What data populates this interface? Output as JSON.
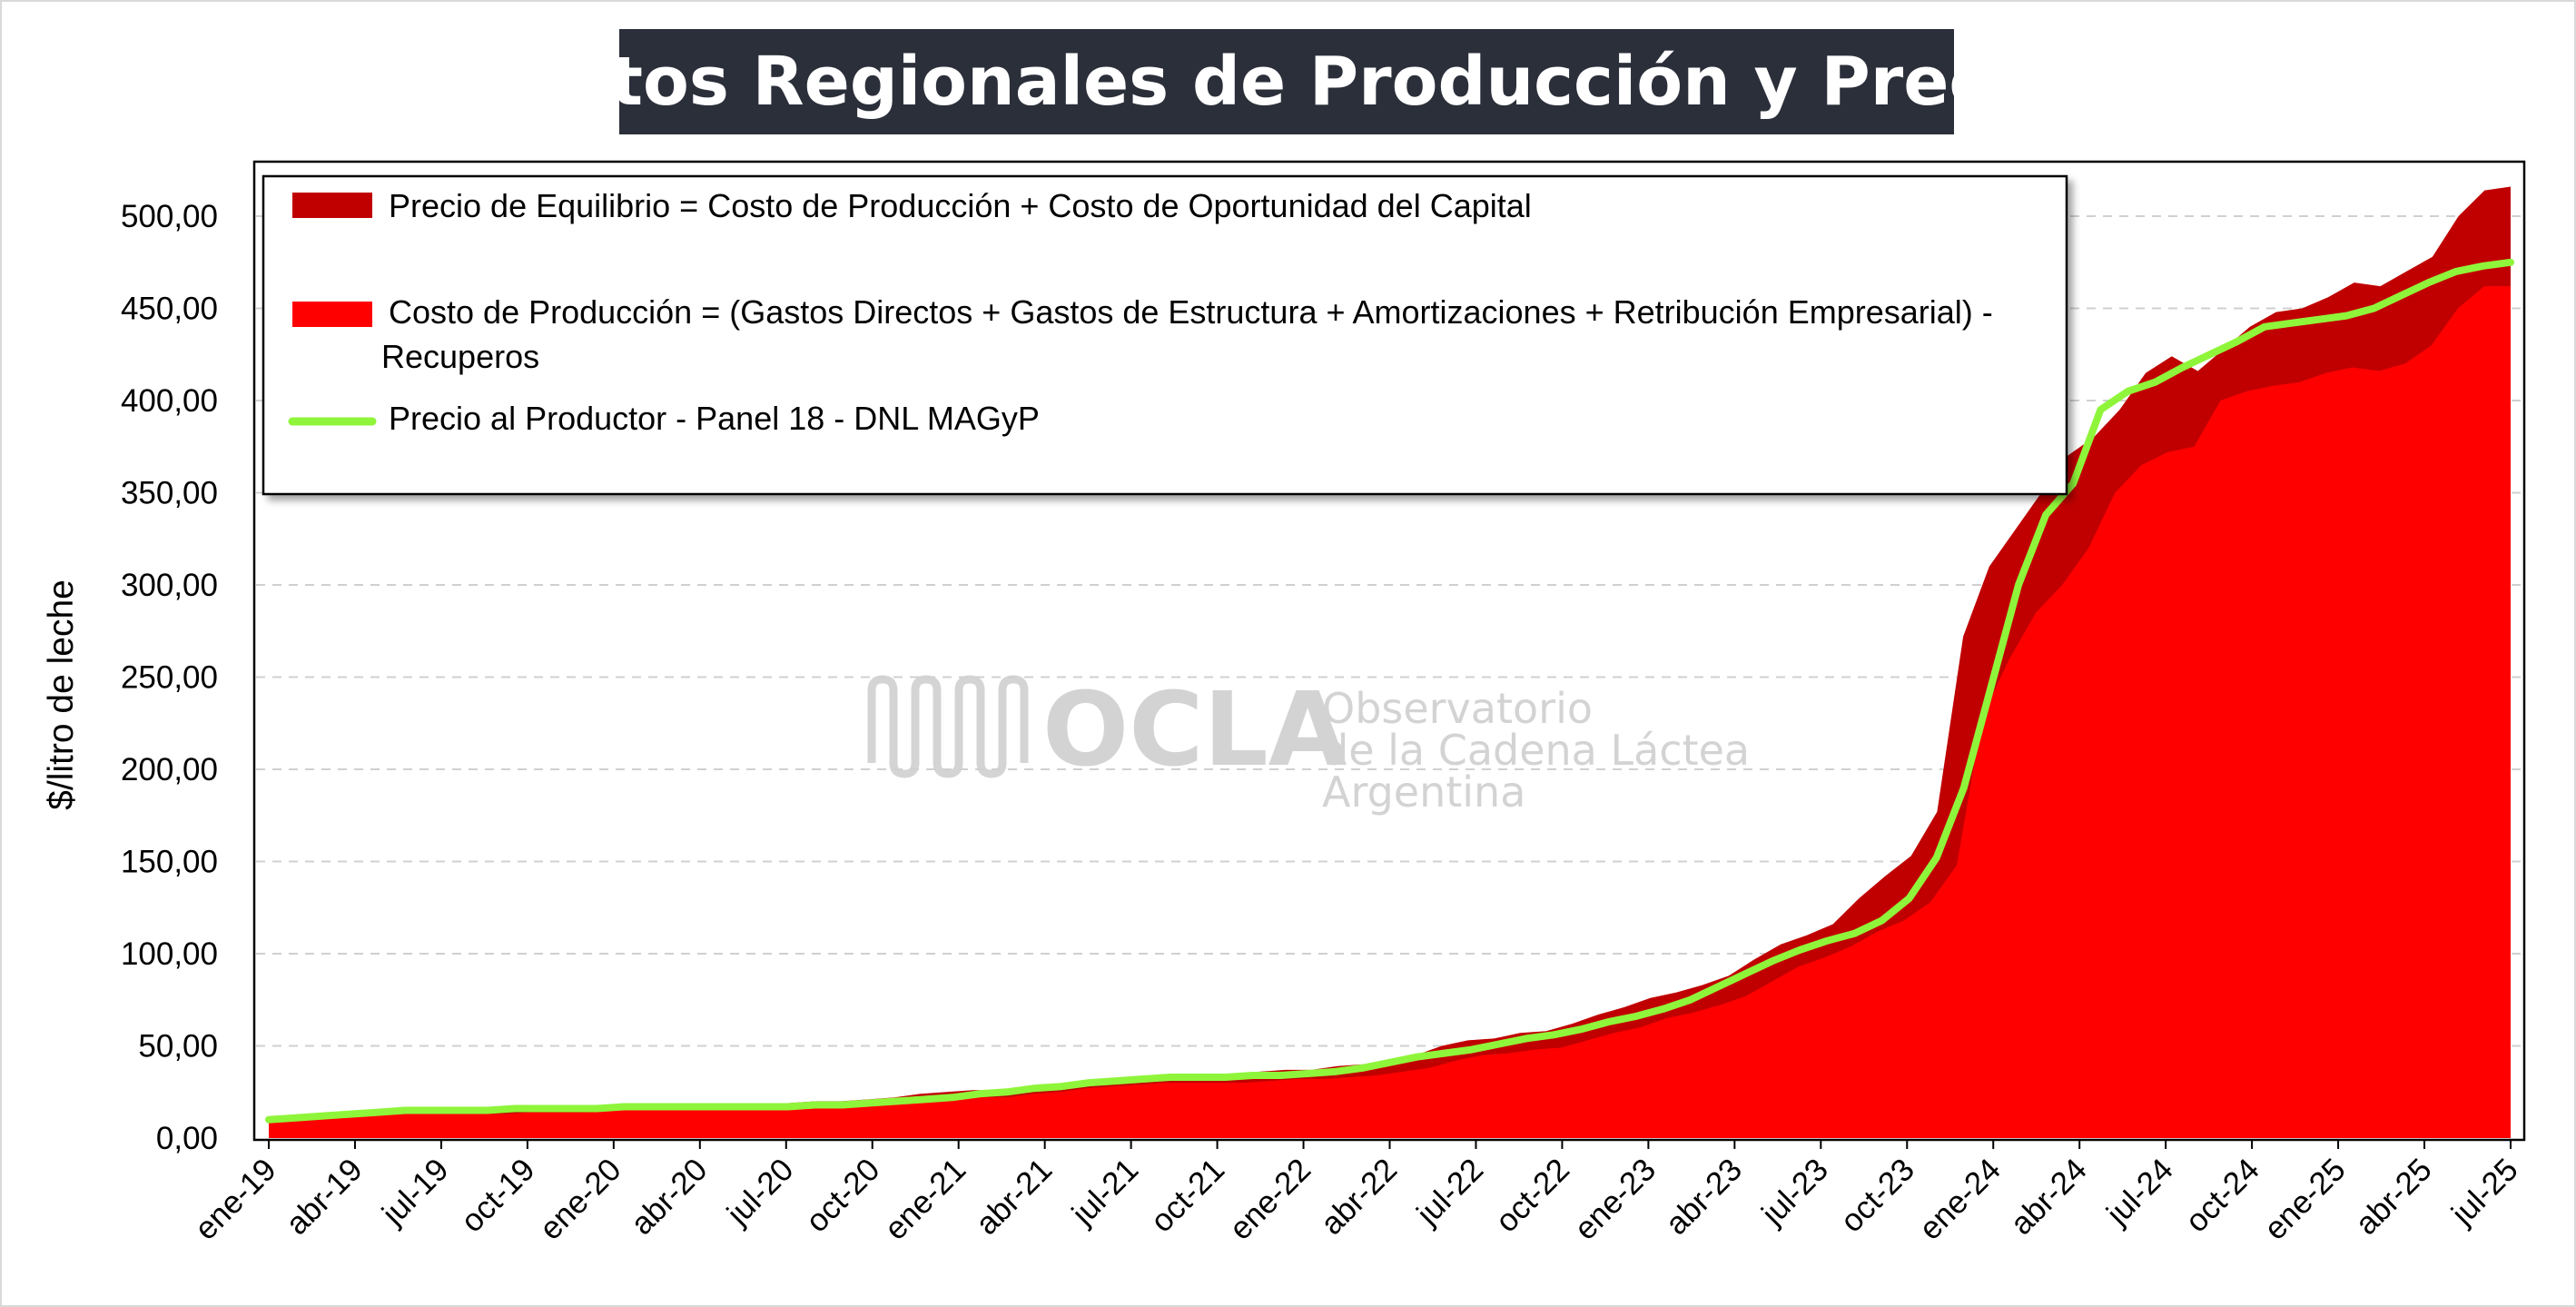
{
  "colors": {
    "equilibrium": "#c00000",
    "cost": "#ff0000",
    "price": "#8ff53a",
    "title_bg": "#2b2f3a"
  },
  "watermark": {
    "brand": "OCLA",
    "line1": "Observatorio",
    "line2": "de la Cadena Láctea",
    "line3": "Argentina"
  },
  "chart_data": {
    "type": "area",
    "title": "Costos Regionales de Producción y Precios",
    "ylabel": "$/litro de leche",
    "xlabel": "",
    "ylim": [
      0,
      500
    ],
    "y_ticks": [
      "0,00",
      "50,00",
      "100,00",
      "150,00",
      "200,00",
      "250,00",
      "300,00",
      "350,00",
      "400,00",
      "450,00",
      "500,00"
    ],
    "x_tick_labels": [
      "ene-19",
      "abr-19",
      "jul-19",
      "oct-19",
      "ene-20",
      "abr-20",
      "jul-20",
      "oct-20",
      "ene-21",
      "abr-21",
      "jul-21",
      "oct-21",
      "ene-22",
      "abr-22",
      "jul-22",
      "oct-22",
      "ene-23",
      "abr-23",
      "jul-23",
      "oct-23",
      "ene-24",
      "abr-24",
      "jul-24",
      "oct-24",
      "ene-25",
      "abr-25",
      "jul-25"
    ],
    "grid": true,
    "legend_position": "top-left",
    "legend": [
      {
        "label": "Precio de Equilibrio = Costo de Producción + Costo de Oportunidad del Capital"
      },
      {
        "label": "Costo de Producción = (Gastos Directos + Gastos de Estructura + Amortizaciones + Retribución Empresarial) -",
        "label2": "Recuperos"
      },
      {
        "label": "Precio al Productor - Panel 18 - DNL MAGyP"
      }
    ],
    "series": [
      {
        "name": "Precio de Equilibrio = Costo de Producción + Costo de Oportunidad del Capital",
        "kind": "area",
        "values": [
          10,
          11,
          12,
          13,
          14,
          15,
          15,
          15,
          15,
          16,
          16,
          16,
          16,
          17,
          17,
          18,
          18,
          18,
          18,
          18,
          19,
          20,
          20,
          21,
          22,
          24,
          25,
          26,
          26,
          28,
          29,
          31,
          32,
          33,
          34,
          34,
          35,
          35,
          36,
          37,
          37,
          39,
          40,
          42,
          45,
          50,
          53,
          54,
          57,
          58,
          62,
          67,
          71,
          76,
          79,
          83,
          88,
          97,
          105,
          110,
          116,
          130,
          142,
          153,
          177,
          272,
          310,
          330,
          350,
          370,
          380,
          395,
          415,
          424,
          416,
          428,
          440,
          448,
          450,
          456,
          464,
          462,
          470,
          478,
          500,
          514,
          516
        ]
      },
      {
        "name": "Costo de Producción = (Gastos Directos + Gastos de Estructura + Amortizaciones + Retribución Empresarial) - Recuperos",
        "kind": "area",
        "values": [
          8,
          9,
          10,
          11,
          12,
          13,
          13,
          13,
          13,
          13,
          14,
          14,
          14,
          15,
          15,
          15,
          15,
          15,
          15,
          15,
          16,
          17,
          17,
          18,
          19,
          20,
          21,
          22,
          22,
          24,
          25,
          27,
          28,
          29,
          30,
          30,
          30,
          30,
          31,
          32,
          32,
          33,
          34,
          36,
          38,
          42,
          45,
          46,
          48,
          49,
          53,
          57,
          60,
          65,
          68,
          72,
          77,
          85,
          93,
          98,
          104,
          112,
          118,
          128,
          148,
          230,
          260,
          285,
          300,
          320,
          350,
          365,
          372,
          375,
          400,
          405,
          408,
          410,
          415,
          418,
          416,
          420,
          430,
          450,
          462,
          462
        ]
      },
      {
        "name": "Precio al Productor - Panel 18 - DNL MAGyP",
        "kind": "line",
        "values": [
          10,
          11,
          12,
          13,
          14,
          15,
          15,
          15,
          15,
          16,
          16,
          16,
          16,
          17,
          17,
          17,
          17,
          17,
          17,
          17,
          18,
          18,
          19,
          20,
          21,
          22,
          24,
          25,
          27,
          28,
          30,
          31,
          32,
          33,
          33,
          33,
          34,
          34,
          35,
          36,
          38,
          41,
          44,
          46,
          48,
          51,
          54,
          56,
          59,
          63,
          66,
          70,
          75,
          82,
          89,
          96,
          102,
          107,
          111,
          118,
          130,
          152,
          190,
          245,
          300,
          338,
          355,
          395,
          405,
          410,
          418,
          425,
          432,
          440,
          442,
          444,
          446,
          450,
          457,
          464,
          470,
          473,
          475
        ]
      }
    ]
  }
}
